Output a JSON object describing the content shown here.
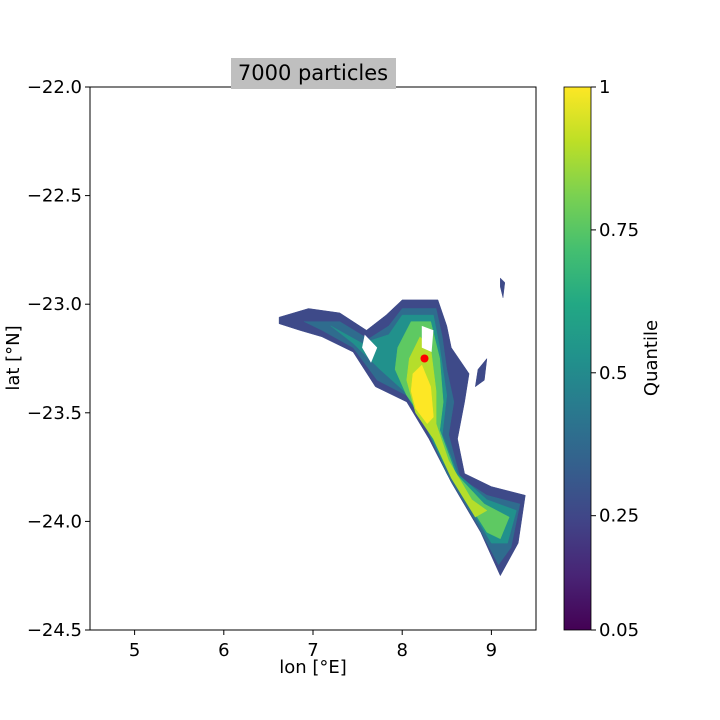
{
  "chart_data": {
    "type": "filled-contour",
    "title": "7000 particles",
    "xlabel": "lon [°E]",
    "ylabel": "lat [°N]",
    "xlim": [
      4.5,
      9.5
    ],
    "ylim": [
      -24.5,
      -22.0
    ],
    "xticks": [
      5,
      6,
      7,
      8,
      9
    ],
    "yticks": [
      -22.0,
      -22.5,
      -23.0,
      -23.5,
      -24.0,
      -24.5
    ],
    "xtick_labels": [
      "5",
      "6",
      "7",
      "8",
      "9"
    ],
    "ytick_labels": [
      "−22.0",
      "−22.5",
      "−23.0",
      "−23.5",
      "−24.0",
      "−24.5"
    ],
    "colorbar": {
      "label": "Quantile",
      "colormap": "viridis",
      "range": [
        0.05,
        1
      ],
      "ticks": [
        0.05,
        0.25,
        0.5,
        0.75,
        1
      ],
      "tick_labels": [
        "0.05",
        "0.25",
        "0.5",
        "0.75",
        "1"
      ]
    },
    "levels": [
      {
        "quantile": 0.3,
        "color": "#3e4a89",
        "regions": [
          [
            [
              6.62,
              -23.06
            ],
            [
              6.95,
              -23.02
            ],
            [
              7.3,
              -23.04
            ],
            [
              7.6,
              -23.12
            ],
            [
              7.82,
              -23.05
            ],
            [
              8.0,
              -22.98
            ],
            [
              8.4,
              -22.98
            ],
            [
              8.5,
              -23.1
            ],
            [
              8.55,
              -23.2
            ],
            [
              8.75,
              -23.32
            ],
            [
              8.7,
              -23.45
            ],
            [
              8.62,
              -23.62
            ],
            [
              8.7,
              -23.78
            ],
            [
              9.0,
              -23.84
            ],
            [
              9.38,
              -23.88
            ],
            [
              9.3,
              -24.1
            ],
            [
              9.1,
              -24.25
            ],
            [
              8.88,
              -24.05
            ],
            [
              8.55,
              -23.82
            ],
            [
              8.3,
              -23.62
            ],
            [
              8.05,
              -23.45
            ],
            [
              7.7,
              -23.38
            ],
            [
              7.45,
              -23.22
            ],
            [
              7.1,
              -23.15
            ],
            [
              6.85,
              -23.12
            ],
            [
              6.62,
              -23.09
            ]
          ],
          [
            [
              9.1,
              -22.88
            ],
            [
              9.15,
              -22.9
            ],
            [
              9.13,
              -22.97
            ],
            [
              9.1,
              -22.92
            ]
          ],
          [
            [
              8.85,
              -23.3
            ],
            [
              8.95,
              -23.25
            ],
            [
              8.92,
              -23.35
            ],
            [
              8.82,
              -23.38
            ]
          ]
        ]
      },
      {
        "quantile": 0.45,
        "color": "#2f6c8e",
        "regions": [
          [
            [
              6.9,
              -23.08
            ],
            [
              7.3,
              -23.08
            ],
            [
              7.62,
              -23.16
            ],
            [
              7.85,
              -23.1
            ],
            [
              8.0,
              -23.02
            ],
            [
              8.38,
              -23.02
            ],
            [
              8.45,
              -23.15
            ],
            [
              8.5,
              -23.3
            ],
            [
              8.58,
              -23.45
            ],
            [
              8.52,
              -23.6
            ],
            [
              8.65,
              -23.8
            ],
            [
              8.95,
              -23.88
            ],
            [
              9.32,
              -23.92
            ],
            [
              9.22,
              -24.12
            ],
            [
              9.08,
              -24.2
            ],
            [
              8.85,
              -24.02
            ],
            [
              8.5,
              -23.78
            ],
            [
              8.28,
              -23.58
            ],
            [
              8.05,
              -23.42
            ],
            [
              7.72,
              -23.35
            ],
            [
              7.45,
              -23.2
            ],
            [
              7.1,
              -23.12
            ]
          ]
        ]
      },
      {
        "quantile": 0.6,
        "color": "#21918c",
        "regions": [
          [
            [
              7.2,
              -23.1
            ],
            [
              7.55,
              -23.18
            ],
            [
              7.85,
              -23.14
            ],
            [
              8.0,
              -23.05
            ],
            [
              8.35,
              -23.05
            ],
            [
              8.42,
              -23.2
            ],
            [
              8.5,
              -23.42
            ],
            [
              8.45,
              -23.6
            ],
            [
              8.62,
              -23.78
            ],
            [
              8.95,
              -23.9
            ],
            [
              9.28,
              -23.95
            ],
            [
              9.18,
              -24.1
            ],
            [
              9.0,
              -24.1
            ],
            [
              8.78,
              -23.95
            ],
            [
              8.45,
              -23.72
            ],
            [
              8.25,
              -23.55
            ],
            [
              8.02,
              -23.4
            ],
            [
              7.75,
              -23.3
            ],
            [
              7.45,
              -23.18
            ]
          ]
        ]
      },
      {
        "quantile": 0.75,
        "color": "#5ec962",
        "regions": [
          [
            [
              7.95,
              -23.2
            ],
            [
              8.1,
              -23.08
            ],
            [
              8.32,
              -23.08
            ],
            [
              8.42,
              -23.25
            ],
            [
              8.46,
              -23.45
            ],
            [
              8.42,
              -23.58
            ],
            [
              8.6,
              -23.78
            ],
            [
              8.92,
              -23.92
            ],
            [
              9.2,
              -23.98
            ],
            [
              9.1,
              -24.08
            ],
            [
              8.95,
              -24.05
            ],
            [
              8.75,
              -23.92
            ],
            [
              8.45,
              -23.7
            ],
            [
              8.28,
              -23.55
            ],
            [
              8.05,
              -23.42
            ],
            [
              7.92,
              -23.3
            ]
          ]
        ]
      },
      {
        "quantile": 0.88,
        "color": "#b5de2b",
        "regions": [
          [
            [
              8.08,
              -23.25
            ],
            [
              8.2,
              -23.15
            ],
            [
              8.32,
              -23.2
            ],
            [
              8.38,
              -23.4
            ],
            [
              8.38,
              -23.55
            ],
            [
              8.52,
              -23.72
            ],
            [
              8.78,
              -23.9
            ],
            [
              8.95,
              -23.95
            ],
            [
              8.82,
              -23.98
            ],
            [
              8.55,
              -23.8
            ],
            [
              8.35,
              -23.62
            ],
            [
              8.15,
              -23.5
            ],
            [
              8.05,
              -23.35
            ]
          ]
        ]
      },
      {
        "quantile": 1.0,
        "color": "#fde725",
        "regions": [
          [
            [
              8.12,
              -23.32
            ],
            [
              8.22,
              -23.28
            ],
            [
              8.32,
              -23.38
            ],
            [
              8.35,
              -23.52
            ],
            [
              8.28,
              -23.55
            ],
            [
              8.15,
              -23.48
            ],
            [
              8.1,
              -23.4
            ]
          ]
        ]
      }
    ],
    "holes": [
      [
        [
          8.22,
          -23.1
        ],
        [
          8.35,
          -23.12
        ],
        [
          8.33,
          -23.22
        ],
        [
          8.22,
          -23.2
        ]
      ],
      [
        [
          7.58,
          -23.14
        ],
        [
          7.72,
          -23.2
        ],
        [
          7.65,
          -23.27
        ],
        [
          7.55,
          -23.2
        ]
      ]
    ],
    "marker": {
      "lon": 8.25,
      "lat": -23.25,
      "color": "#ff0000"
    }
  }
}
